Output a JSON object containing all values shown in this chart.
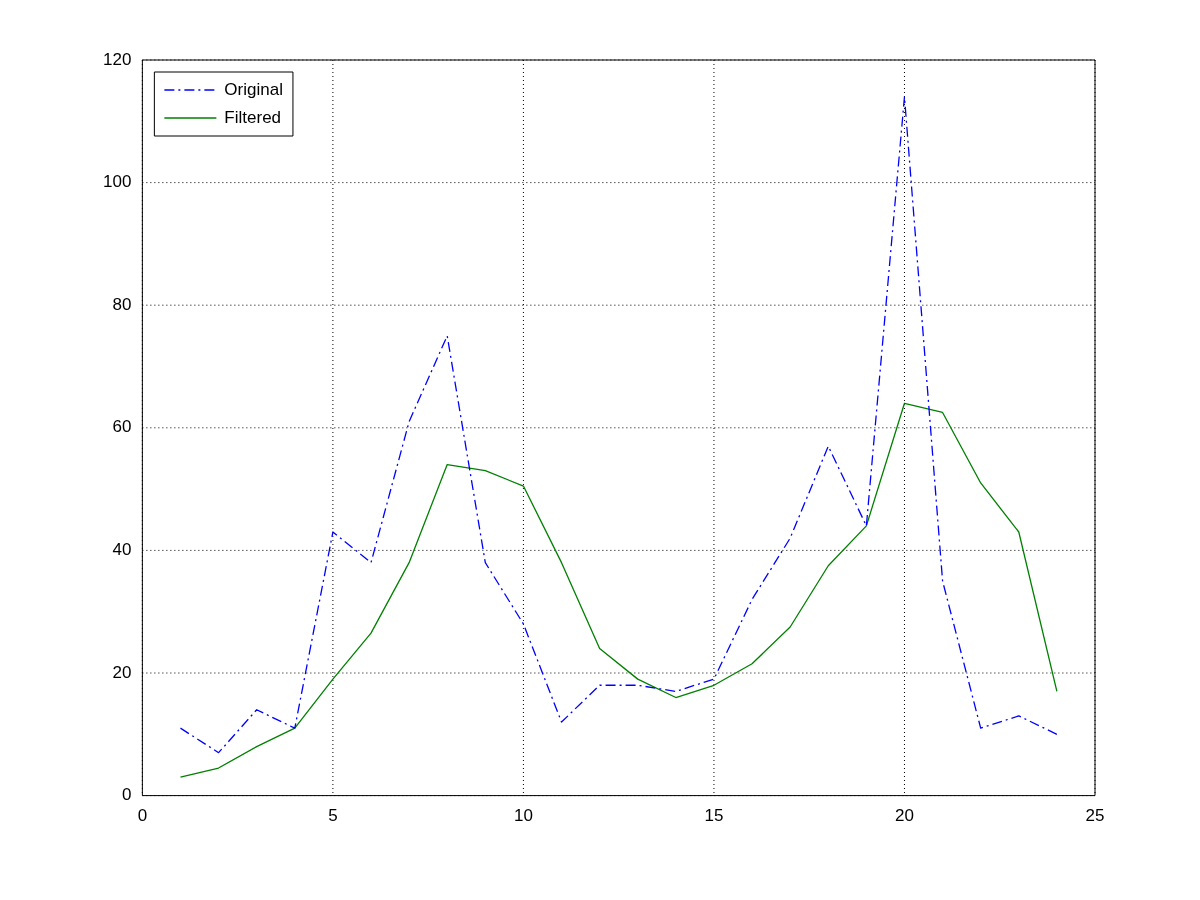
{
  "chart_data": {
    "type": "line",
    "x": [
      1,
      2,
      3,
      4,
      5,
      6,
      7,
      8,
      9,
      10,
      11,
      12,
      13,
      14,
      15,
      16,
      17,
      18,
      19,
      20,
      21,
      22,
      23,
      24
    ],
    "series": [
      {
        "name": "Original",
        "color": "#0000ff",
        "line_style": "dashed",
        "values": [
          11,
          7,
          14,
          11,
          43,
          38,
          61,
          75,
          38,
          28,
          12,
          18,
          18,
          17,
          19,
          32,
          42,
          57,
          44,
          114,
          35,
          11,
          13,
          10
        ]
      },
      {
        "name": "Filtered",
        "color": "#008000",
        "line_style": "solid",
        "values": [
          3,
          4.5,
          8,
          11,
          19,
          26.5,
          38,
          54,
          53,
          50.5,
          38,
          24,
          19,
          16,
          18,
          21.5,
          27.5,
          37.5,
          44,
          64,
          62.5,
          51,
          43,
          17
        ]
      }
    ],
    "xlim": [
      0,
      25
    ],
    "xticks": [
      0,
      5,
      10,
      15,
      20,
      25
    ],
    "ylim": [
      0,
      120
    ],
    "yticks": [
      0,
      20,
      40,
      60,
      80,
      100,
      120
    ],
    "grid": true,
    "legend": "top left",
    "marker": "none"
  }
}
